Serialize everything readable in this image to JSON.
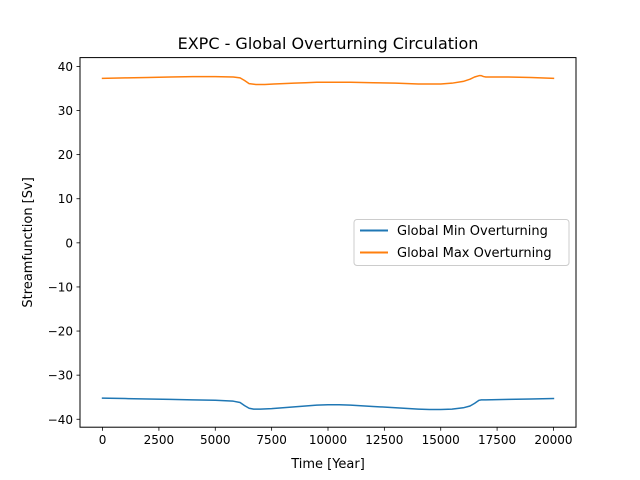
{
  "chart_data": {
    "type": "line",
    "title": "EXPC - Global Overturning Circulation",
    "xlabel": "Time [Year]",
    "ylabel": "Streamfunction [Sv]",
    "xlim": [
      -1000,
      21000
    ],
    "ylim": [
      -41.8,
      42.0
    ],
    "xticks": [
      0,
      2500,
      5000,
      7500,
      10000,
      12500,
      15000,
      17500,
      20000
    ],
    "yticks": [
      -40,
      -30,
      -20,
      -10,
      0,
      10,
      20,
      30,
      40
    ],
    "grid": false,
    "legend_position": "center-right",
    "series": [
      {
        "name": "Global Min Overturning",
        "color": "#1f77b4",
        "x": [
          0,
          1000,
          2000,
          3000,
          4000,
          5000,
          5800,
          6100,
          6300,
          6500,
          6700,
          7000,
          7500,
          8000,
          8500,
          9000,
          9500,
          10000,
          10500,
          11000,
          12000,
          13000,
          14000,
          14500,
          15000,
          15500,
          16000,
          16300,
          16500,
          16700,
          16800,
          17000,
          18000,
          19000,
          20000
        ],
        "y": [
          -35.2,
          -35.3,
          -35.4,
          -35.5,
          -35.6,
          -35.7,
          -35.9,
          -36.2,
          -36.9,
          -37.5,
          -37.7,
          -37.7,
          -37.6,
          -37.4,
          -37.2,
          -37.0,
          -36.8,
          -36.7,
          -36.7,
          -36.8,
          -37.1,
          -37.4,
          -37.7,
          -37.8,
          -37.8,
          -37.7,
          -37.4,
          -37.0,
          -36.4,
          -35.7,
          -35.6,
          -35.6,
          -35.5,
          -35.4,
          -35.3
        ]
      },
      {
        "name": "Global Max Overturning",
        "color": "#ff7f0e",
        "x": [
          0,
          1000,
          2000,
          3000,
          4000,
          5000,
          5800,
          6100,
          6300,
          6500,
          6800,
          7200,
          7600,
          8000,
          8500,
          9000,
          9500,
          10000,
          11000,
          12000,
          13000,
          14000,
          14500,
          15000,
          15500,
          16000,
          16300,
          16500,
          16700,
          16800,
          16900,
          17000,
          18000,
          19000,
          20000
        ],
        "y": [
          37.3,
          37.4,
          37.5,
          37.6,
          37.7,
          37.7,
          37.6,
          37.4,
          36.8,
          36.1,
          35.9,
          35.9,
          36.0,
          36.1,
          36.2,
          36.3,
          36.4,
          36.4,
          36.4,
          36.3,
          36.2,
          36.0,
          36.0,
          36.0,
          36.2,
          36.6,
          37.1,
          37.6,
          37.9,
          37.9,
          37.7,
          37.6,
          37.6,
          37.5,
          37.3
        ]
      }
    ]
  }
}
